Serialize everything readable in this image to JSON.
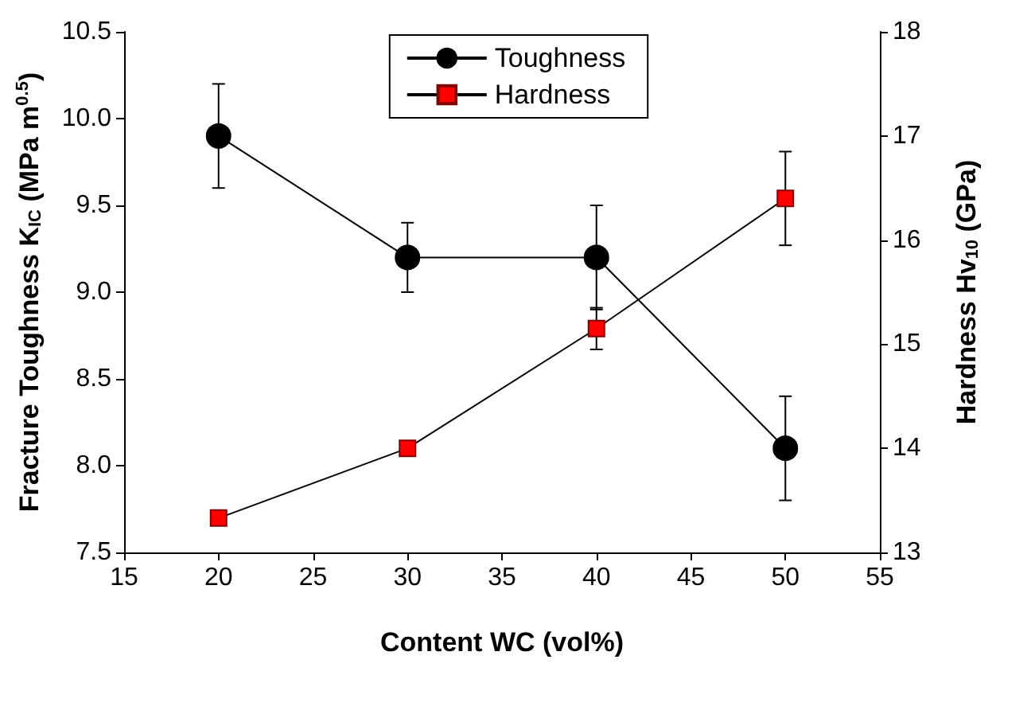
{
  "chart_data": {
    "type": "line",
    "xlabel": "Content WC (vol%)",
    "ylabel": "Fracture Toughness K$_{IC}$ (MPa m$^{0.5}$)",
    "y2label": "Hardness Hv$_{10}$ (GPa)",
    "x": [
      20,
      30,
      40,
      50
    ],
    "series": [
      {
        "name": "Toughness",
        "color": "#000000",
        "marker": "circle",
        "values": [
          9.9,
          9.2,
          9.2,
          8.1
        ],
        "errors": [
          0.3,
          0.2,
          0.3,
          0.3
        ]
      },
      {
        "name": "Hardness",
        "color": "#ff0000",
        "marker": "square",
        "axis": "y2",
        "values": [
          13.33,
          14.0,
          15.15,
          16.4
        ],
        "errors": [
          null,
          null,
          0.2,
          0.45
        ]
      }
    ],
    "xlim": [
      15,
      55
    ],
    "xticks": [
      15,
      20,
      25,
      30,
      35,
      40,
      45,
      50,
      55
    ],
    "ylim": [
      7.5,
      10.5
    ],
    "yticks": [
      7.5,
      {
        "value": 8,
        "label": "8.0"
      },
      8.5,
      {
        "value": 9,
        "label": "9.0"
      },
      9.5,
      {
        "value": 10,
        "label": "10.0"
      },
      10.5
    ],
    "y2lim": [
      13,
      18
    ],
    "y2ticks": [
      13,
      14,
      15,
      16,
      17,
      18
    ],
    "grid": false,
    "legend": "top",
    "line_style": "solid"
  }
}
